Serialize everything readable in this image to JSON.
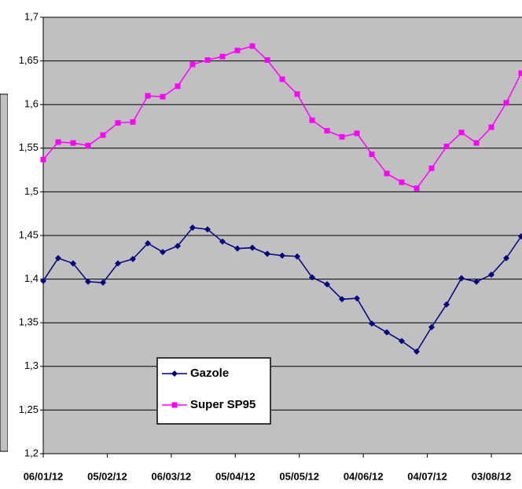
{
  "chart_data": {
    "type": "line",
    "x": [
      "2012-01-06",
      "2012-01-13",
      "2012-01-20",
      "2012-01-27",
      "2012-02-03",
      "2012-02-10",
      "2012-02-17",
      "2012-02-24",
      "2012-03-02",
      "2012-03-09",
      "2012-03-16",
      "2012-03-23",
      "2012-03-30",
      "2012-04-06",
      "2012-04-13",
      "2012-04-20",
      "2012-04-27",
      "2012-05-04",
      "2012-05-11",
      "2012-05-18",
      "2012-05-25",
      "2012-06-01",
      "2012-06-08",
      "2012-06-15",
      "2012-06-22",
      "2012-06-29",
      "2012-07-06",
      "2012-07-13",
      "2012-07-20",
      "2012-07-27",
      "2012-08-03",
      "2012-08-10",
      "2012-08-17"
    ],
    "series": [
      {
        "name": "Gazole",
        "color": "#000080",
        "marker": "diamond",
        "values": [
          1.398,
          1.424,
          1.418,
          1.397,
          1.396,
          1.418,
          1.423,
          1.441,
          1.431,
          1.438,
          1.459,
          1.457,
          1.443,
          1.435,
          1.436,
          1.429,
          1.427,
          1.426,
          1.402,
          1.394,
          1.377,
          1.378,
          1.349,
          1.339,
          1.329,
          1.317,
          1.345,
          1.371,
          1.401,
          1.397,
          1.405,
          1.424,
          1.449
        ]
      },
      {
        "name": "Super SP95",
        "color": "#ff00ff",
        "marker": "square",
        "values": [
          1.537,
          1.557,
          1.556,
          1.553,
          1.565,
          1.579,
          1.58,
          1.61,
          1.609,
          1.621,
          1.646,
          1.651,
          1.655,
          1.662,
          1.667,
          1.651,
          1.629,
          1.612,
          1.582,
          1.57,
          1.563,
          1.567,
          1.543,
          1.521,
          1.511,
          1.504,
          1.527,
          1.552,
          1.568,
          1.556,
          1.574,
          1.602,
          1.636
        ]
      }
    ],
    "xlim": [
      "2012-01-06",
      "2012-08-17"
    ],
    "xticks": [
      {
        "value": "2012-01-06",
        "label": "06/01/12"
      },
      {
        "value": "2012-02-05",
        "label": "05/02/12"
      },
      {
        "value": "2012-03-06",
        "label": "06/03/12"
      },
      {
        "value": "2012-04-05",
        "label": "05/04/12"
      },
      {
        "value": "2012-05-05",
        "label": "05/05/12"
      },
      {
        "value": "2012-06-04",
        "label": "04/06/12"
      },
      {
        "value": "2012-07-04",
        "label": "04/07/12"
      },
      {
        "value": "2012-08-03",
        "label": "03/08/12"
      }
    ],
    "ylim": [
      1.2,
      1.7
    ],
    "yticks": [
      {
        "value": 1.2,
        "label": "1,2"
      },
      {
        "value": 1.25,
        "label": "1,25"
      },
      {
        "value": 1.3,
        "label": "1,3"
      },
      {
        "value": 1.35,
        "label": "1,35"
      },
      {
        "value": 1.4,
        "label": "1,4"
      },
      {
        "value": 1.45,
        "label": "1,45"
      },
      {
        "value": 1.5,
        "label": "1,5"
      },
      {
        "value": 1.55,
        "label": "1,55"
      },
      {
        "value": 1.6,
        "label": "1,6"
      },
      {
        "value": 1.65,
        "label": "1,65"
      },
      {
        "value": 1.7,
        "label": "1,7"
      }
    ],
    "grid": true,
    "background": "#c0c0c0"
  }
}
